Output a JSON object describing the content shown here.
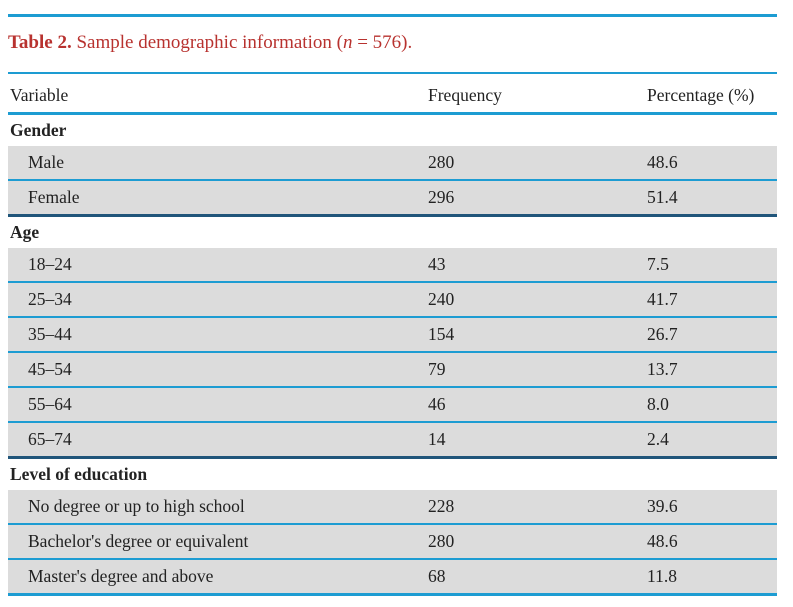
{
  "caption": {
    "label": "Table 2.",
    "text_before": " Sample demographic information (",
    "n_symbol": "n",
    "text_after": " = 576)."
  },
  "headers": {
    "variable": "Variable",
    "frequency": "Frequency",
    "percentage": "Percentage (%)"
  },
  "groups": [
    {
      "title": "Gender",
      "rows": [
        {
          "label": "Male",
          "frequency": "280",
          "percentage": "48.6"
        },
        {
          "label": "Female",
          "frequency": "296",
          "percentage": "51.4"
        }
      ]
    },
    {
      "title": "Age",
      "rows": [
        {
          "label": "18–24",
          "frequency": "43",
          "percentage": "7.5"
        },
        {
          "label": "25–34",
          "frequency": "240",
          "percentage": "41.7"
        },
        {
          "label": "35–44",
          "frequency": "154",
          "percentage": "26.7"
        },
        {
          "label": "45–54",
          "frequency": "79",
          "percentage": "13.7"
        },
        {
          "label": "55–64",
          "frequency": "46",
          "percentage": "8.0"
        },
        {
          "label": "65–74",
          "frequency": "14",
          "percentage": "2.4"
        }
      ]
    },
    {
      "title": "Level of education",
      "rows": [
        {
          "label": "No degree or up to high school",
          "frequency": "228",
          "percentage": "39.6"
        },
        {
          "label": "Bachelor's degree or equivalent",
          "frequency": "280",
          "percentage": "48.6"
        },
        {
          "label": "Master's degree and above",
          "frequency": "68",
          "percentage": "11.8"
        }
      ]
    }
  ],
  "colors": {
    "rule": "#1d9cd2",
    "rule_dark": "#20557a",
    "caption": "#b8322f",
    "row_fill": "#dcdcdc"
  }
}
